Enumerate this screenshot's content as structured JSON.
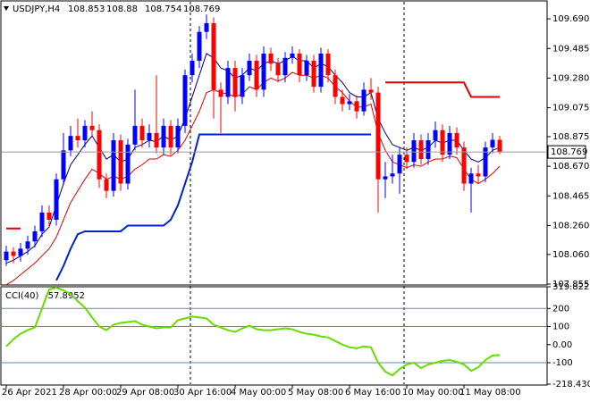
{
  "chart_data": [
    {
      "type": "candlestick",
      "title": "USDJPY,H4",
      "categories": [
        "26 Apr 2021",
        null,
        null,
        null,
        null,
        null,
        null,
        null,
        "28 Apr 00:00",
        null,
        null,
        null,
        null,
        null,
        null,
        null,
        "29 Apr 08:00",
        null,
        null,
        null,
        null,
        null,
        null,
        null,
        "30 Apr 16:00",
        null,
        null,
        null,
        null,
        null,
        null,
        null,
        "4 May 00:00",
        null,
        null,
        null,
        null,
        null,
        null,
        null,
        "5 May 08:00",
        null,
        null,
        null,
        null,
        null,
        null,
        null,
        "6 May 16:00",
        null,
        null,
        null,
        null,
        null,
        null,
        null,
        "10 May 00:00",
        null,
        null,
        null,
        null,
        null,
        null,
        null,
        "11 May 08:00",
        null,
        null,
        null,
        null,
        null
      ],
      "open": [
        108.02,
        108.08,
        108.05,
        108.1,
        108.15,
        108.22,
        108.35,
        108.3,
        108.58,
        108.78,
        108.88,
        108.85,
        108.95,
        108.92,
        108.58,
        108.5,
        108.85,
        108.55,
        108.82,
        108.95,
        108.85,
        108.9,
        108.8,
        108.95,
        108.8,
        108.95,
        109.3,
        109.4,
        109.6,
        109.66,
        109.2,
        109.15,
        109.35,
        109.15,
        109.3,
        109.4,
        109.2,
        109.45,
        109.38,
        109.3,
        109.42,
        109.45,
        109.3,
        109.4,
        109.22,
        109.45,
        109.3,
        109.15,
        109.1,
        109.12,
        109.05,
        109.2,
        109.18,
        108.58,
        108.6,
        108.62,
        108.75,
        108.7,
        108.85,
        108.72,
        108.85,
        108.92,
        108.75,
        108.9,
        108.8,
        108.55,
        108.62,
        108.6,
        108.8,
        108.853
      ],
      "high": [
        108.12,
        108.11,
        108.14,
        108.19,
        108.26,
        108.4,
        108.4,
        108.62,
        108.9,
        108.95,
        109.0,
        108.99,
        109.05,
        108.96,
        108.62,
        108.9,
        108.89,
        108.86,
        109.2,
        109.0,
        108.96,
        109.3,
        109.0,
        108.99,
        109.0,
        109.34,
        109.45,
        109.64,
        109.72,
        109.7,
        109.25,
        109.4,
        109.4,
        109.35,
        109.45,
        109.44,
        109.5,
        109.49,
        109.42,
        109.46,
        109.5,
        109.48,
        109.44,
        109.44,
        109.49,
        109.48,
        109.34,
        109.2,
        109.17,
        109.16,
        109.25,
        109.28,
        109.22,
        108.7,
        108.75,
        108.8,
        108.8,
        108.9,
        108.89,
        108.9,
        108.98,
        108.96,
        108.95,
        108.94,
        108.84,
        108.66,
        108.68,
        108.84,
        108.9,
        108.88
      ],
      "low": [
        107.98,
        108.0,
        108.01,
        108.06,
        108.11,
        108.18,
        108.25,
        108.26,
        108.54,
        108.74,
        108.8,
        108.8,
        108.88,
        108.52,
        108.45,
        108.46,
        108.5,
        108.51,
        108.78,
        108.8,
        108.8,
        108.76,
        108.75,
        108.75,
        108.76,
        108.9,
        109.25,
        109.35,
        109.55,
        109.0,
        108.9,
        109.1,
        109.05,
        109.1,
        109.26,
        109.15,
        109.15,
        109.33,
        109.25,
        109.25,
        109.38,
        109.25,
        109.26,
        109.18,
        109.18,
        109.25,
        109.1,
        109.05,
        109.06,
        109.0,
        109.02,
        109.13,
        108.35,
        108.45,
        108.55,
        108.48,
        108.65,
        108.66,
        108.68,
        108.68,
        108.8,
        108.7,
        108.72,
        108.75,
        108.5,
        108.35,
        108.55,
        108.56,
        108.76,
        108.754
      ],
      "close": [
        108.08,
        108.05,
        108.1,
        108.15,
        108.22,
        108.35,
        108.3,
        108.58,
        108.78,
        108.88,
        108.85,
        108.95,
        108.92,
        108.58,
        108.5,
        108.85,
        108.55,
        108.82,
        108.95,
        108.85,
        108.9,
        108.8,
        108.95,
        108.8,
        108.95,
        109.3,
        109.4,
        109.6,
        109.66,
        109.2,
        109.15,
        109.35,
        109.15,
        109.3,
        109.4,
        109.2,
        109.45,
        109.38,
        109.3,
        109.42,
        109.45,
        109.3,
        109.4,
        109.22,
        109.45,
        109.3,
        109.15,
        109.1,
        109.12,
        109.05,
        109.2,
        109.18,
        108.58,
        108.6,
        108.62,
        108.75,
        108.7,
        108.85,
        108.72,
        108.85,
        108.92,
        108.75,
        108.9,
        108.8,
        108.55,
        108.62,
        108.6,
        108.8,
        108.853,
        108.769
      ],
      "up_color": "#0000ff",
      "down_color": "#ff0000",
      "series": [
        {
          "color": "#000080",
          "values": [
            108.0,
            108.02,
            108.05,
            108.08,
            108.12,
            108.2,
            108.25,
            108.4,
            108.55,
            108.68,
            108.75,
            108.82,
            108.88,
            108.8,
            108.72,
            108.75,
            108.7,
            108.72,
            108.8,
            108.82,
            108.85,
            108.84,
            108.88,
            108.85,
            108.88,
            109.0,
            109.15,
            109.3,
            109.45,
            109.42,
            109.35,
            109.33,
            109.28,
            109.3,
            109.35,
            109.33,
            109.38,
            109.4,
            109.38,
            109.4,
            109.43,
            109.4,
            109.4,
            109.35,
            109.38,
            109.36,
            109.3,
            109.25,
            109.18,
            109.15,
            109.15,
            109.18,
            109.0,
            108.9,
            108.82,
            108.8,
            108.78,
            108.8,
            108.78,
            108.8,
            108.85,
            108.83,
            108.85,
            108.85,
            108.78,
            108.72,
            108.7,
            108.73,
            108.78,
            108.8
          ]
        },
        {
          "color": "#e00000",
          "values": [
            107.85,
            107.88,
            107.92,
            107.96,
            108.0,
            108.05,
            108.1,
            108.18,
            108.3,
            108.42,
            108.5,
            108.58,
            108.65,
            108.62,
            108.58,
            108.6,
            108.58,
            108.6,
            108.65,
            108.68,
            108.72,
            108.72,
            108.75,
            108.74,
            108.78,
            108.85,
            108.95,
            109.05,
            109.18,
            109.2,
            109.18,
            109.17,
            109.15,
            109.17,
            109.22,
            109.2,
            109.25,
            109.28,
            109.26,
            109.28,
            109.32,
            109.3,
            109.3,
            109.28,
            109.3,
            109.28,
            109.22,
            109.18,
            109.12,
            109.08,
            109.08,
            109.1,
            108.9,
            108.78,
            108.7,
            108.68,
            108.66,
            108.68,
            108.67,
            108.7,
            108.72,
            108.72,
            108.74,
            108.73,
            108.65,
            108.58,
            108.55,
            108.58,
            108.62,
            108.67
          ]
        },
        {
          "color": "#0022cc",
          "width": 2,
          "values": [
            null,
            null,
            null,
            null,
            null,
            null,
            null,
            107.88,
            107.98,
            108.1,
            108.2,
            108.22,
            108.22,
            108.22,
            108.22,
            108.22,
            108.22,
            108.26,
            108.26,
            108.26,
            108.26,
            108.26,
            108.26,
            108.3,
            108.4,
            108.55,
            108.7,
            108.89,
            108.89,
            108.89,
            108.89,
            108.89,
            108.89,
            108.89,
            108.89,
            108.89,
            108.89,
            108.89,
            108.89,
            108.89,
            108.89,
            108.89,
            108.89,
            108.89,
            108.89,
            108.89,
            108.89,
            108.89,
            108.89,
            108.89,
            108.89,
            108.89,
            null,
            null,
            null,
            null,
            null,
            null,
            null,
            null,
            null,
            null,
            null,
            null,
            null,
            null,
            null,
            null,
            null,
            null
          ]
        },
        {
          "color": "#dd0000",
          "width": 2,
          "values": [
            108.24,
            108.24,
            108.24,
            null,
            null,
            null,
            null,
            null,
            null,
            null,
            null,
            null,
            null,
            null,
            null,
            null,
            null,
            null,
            null,
            null,
            null,
            null,
            null,
            null,
            null,
            null,
            null,
            null,
            null,
            null,
            null,
            null,
            null,
            null,
            null,
            null,
            null,
            null,
            null,
            null,
            null,
            null,
            null,
            null,
            null,
            null,
            null,
            null,
            null,
            null,
            null,
            null,
            null,
            109.25,
            109.25,
            109.25,
            109.25,
            109.25,
            109.25,
            109.25,
            109.25,
            109.25,
            109.25,
            109.25,
            109.25,
            109.15,
            109.15,
            109.15,
            109.15,
            109.15
          ]
        }
      ],
      "ylim": [
        107.855,
        109.808
      ],
      "yticks": [
        {
          "value": 109.69,
          "label": "109.690"
        },
        109.485,
        {
          "value": 109.28,
          "label": "109.280"
        },
        109.075,
        108.875,
        {
          "value": 108.67,
          "label": "108.670"
        },
        108.465,
        {
          "value": 108.26,
          "label": "108.260"
        },
        {
          "value": 108.06,
          "label": "108.060"
        },
        107.855
      ]
    },
    {
      "type": "line",
      "title": "CCI(40)",
      "color": "#66dd00",
      "values": [
        -10,
        30,
        60,
        80,
        95,
        200,
        305,
        315,
        300,
        280,
        240,
        205,
        150,
        100,
        80,
        110,
        120,
        125,
        130,
        110,
        100,
        90,
        95,
        95,
        135,
        145,
        155,
        150,
        145,
        110,
        95,
        80,
        70,
        90,
        105,
        85,
        80,
        80,
        85,
        90,
        85,
        70,
        60,
        55,
        45,
        40,
        20,
        0,
        -15,
        -20,
        -10,
        -15,
        -100,
        -150,
        -170,
        -135,
        -110,
        -100,
        -130,
        -110,
        -100,
        -90,
        -85,
        -95,
        -110,
        -145,
        -125,
        -85,
        -60,
        -57.8952
      ],
      "ylim": [
        -218.4305,
        319.8226
      ],
      "yticks": [
        319.8226,
        200,
        100,
        {
          "value": 0,
          "label": "0.00"
        },
        -100,
        -218.4305
      ],
      "level_lines": [
        200,
        100,
        -100
      ],
      "level_color": "#6688aa"
    }
  ]
}
